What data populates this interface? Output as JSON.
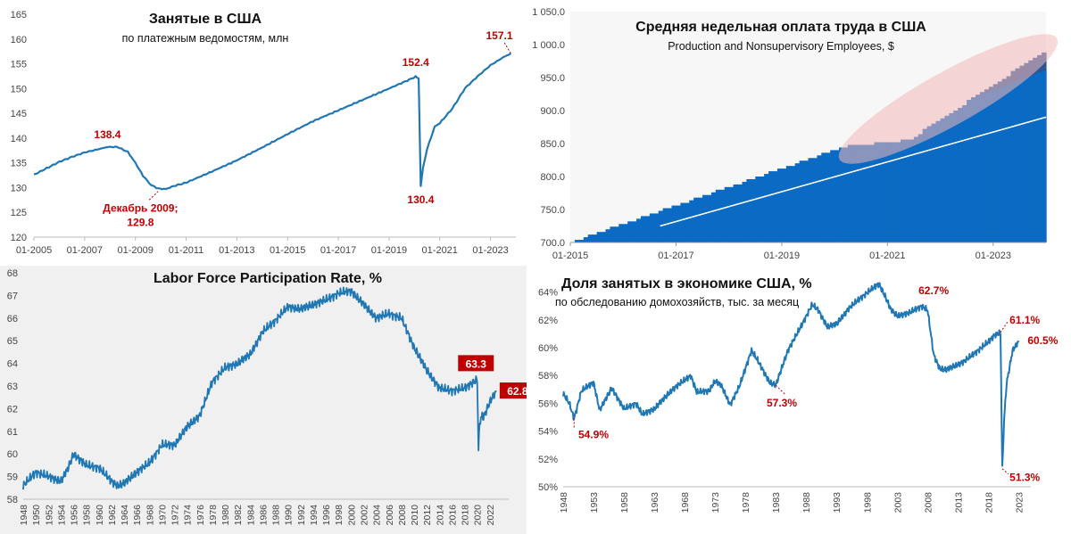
{
  "chart_data": [
    {
      "type": "line",
      "title": "Занятые в США",
      "subtitle": "по платежным ведомостям, млн",
      "x_ticks": [
        "01-2005",
        "01-2007",
        "01-2009",
        "01-2011",
        "01-2013",
        "01-2015",
        "01-2017",
        "01-2019",
        "01-2021",
        "01-2023"
      ],
      "y_ticks": [
        "120",
        "125",
        "130",
        "135",
        "140",
        "145",
        "150",
        "155",
        "160",
        "165"
      ],
      "ylim": [
        120,
        165
      ],
      "xlim": [
        2005.0,
        2024.0
      ],
      "color": "#1f77b4",
      "series": [
        {
          "x": [
            2005.0,
            2005.5,
            2006.0,
            2006.5,
            2007.0,
            2007.5,
            2007.9,
            2008.3,
            2008.7,
            2009.0,
            2009.3,
            2009.6,
            2009.9,
            2010.2,
            2010.5,
            2011.0,
            2012.0,
            2013.0,
            2014.0,
            2015.0,
            2016.0,
            2017.0,
            2018.0,
            2019.0,
            2019.8,
            2020.05,
            2020.17,
            2020.25,
            2020.34,
            2020.5,
            2020.8,
            2021.0,
            2021.5,
            2022.0,
            2022.5,
            2023.0,
            2023.5,
            2023.8
          ],
          "values": [
            132.6,
            133.9,
            135.2,
            136.2,
            137.1,
            137.7,
            138.2,
            138.2,
            137.2,
            135.0,
            132.4,
            130.6,
            129.8,
            129.7,
            130.3,
            131.0,
            133.2,
            135.5,
            138.1,
            140.8,
            143.4,
            145.6,
            147.8,
            150.0,
            151.8,
            152.4,
            152.0,
            130.4,
            134.0,
            137.8,
            142.3,
            143.0,
            146.0,
            150.1,
            152.5,
            154.7,
            156.3,
            157.1
          ]
        }
      ],
      "annotations": [
        "138.4",
        "Декабрь 2009;",
        "129.8",
        "152.4",
        "130.4",
        "157.1"
      ]
    },
    {
      "type": "bar",
      "title": "Средняя недельная оплата труда в США",
      "subtitle": "Production and Nonsupervisory Employees, $",
      "x_ticks": [
        "01-2015",
        "01-2017",
        "01-2019",
        "01-2021",
        "01-2023"
      ],
      "y_ticks": [
        "700.0",
        "750.0",
        "800.0",
        "850.0",
        "900.0",
        "950.0",
        "1 000.0",
        "1 050.0"
      ],
      "ylim": [
        700,
        1050
      ],
      "xlim": [
        2015.0,
        2024.0
      ],
      "colors": {
        "bar": "#0a6ac4",
        "highlight": "#2b5797",
        "ellipse": "#f2b8b8",
        "trendline": "#ffffff"
      },
      "bars_x": [
        2015.0,
        2023.9
      ],
      "bars_values": [
        703,
        990
      ],
      "trend_line": {
        "x": [
          2016.7,
          2024.0
        ],
        "values": [
          725,
          890
        ]
      }
    },
    {
      "type": "line",
      "title": "Labor Force Participation Rate, %",
      "x_ticks": [
        "1948",
        "1950",
        "1952",
        "1954",
        "1956",
        "1958",
        "1960",
        "1962",
        "1964",
        "1966",
        "1968",
        "1970",
        "1972",
        "1974",
        "1976",
        "1978",
        "1980",
        "1982",
        "1984",
        "1986",
        "1988",
        "1990",
        "1992",
        "1994",
        "1996",
        "1998",
        "2000",
        "2002",
        "2004",
        "2006",
        "2008",
        "2010",
        "2012",
        "2014",
        "2016",
        "2018",
        "2020",
        "2022"
      ],
      "y_ticks": [
        "58",
        "59",
        "60",
        "61",
        "62",
        "63",
        "64",
        "65",
        "66",
        "67",
        "68"
      ],
      "ylim": [
        58,
        68
      ],
      "xlim": [
        1948,
        2025
      ],
      "color": "#1f77b4",
      "series": [
        {
          "x": [
            1948,
            1950,
            1952,
            1954,
            1955,
            1956,
            1958,
            1960,
            1962,
            1963,
            1964,
            1966,
            1968,
            1970,
            1972,
            1974,
            1976,
            1978,
            1980,
            1982,
            1984,
            1986,
            1988,
            1990,
            1992,
            1994,
            1996,
            1998,
            2000,
            2002,
            2004,
            2006,
            2008,
            2010,
            2012,
            2014,
            2016,
            2018,
            2019,
            2020.0,
            2020.2,
            2020.4,
            2020.8,
            2021,
            2022,
            2023
          ],
          "values": [
            58.6,
            59.2,
            59.0,
            58.8,
            59.3,
            60.0,
            59.5,
            59.4,
            58.8,
            58.6,
            58.7,
            59.2,
            59.6,
            60.4,
            60.4,
            61.2,
            61.7,
            63.2,
            63.8,
            64.0,
            64.4,
            65.4,
            65.9,
            66.5,
            66.4,
            66.6,
            66.8,
            67.1,
            67.2,
            66.6,
            66.0,
            66.2,
            66.0,
            64.7,
            63.7,
            62.9,
            62.8,
            62.9,
            63.1,
            63.3,
            60.2,
            61.4,
            61.7,
            61.6,
            62.3,
            62.8
          ]
        }
      ],
      "annotations": [
        "63.3",
        "62.8"
      ]
    },
    {
      "type": "line",
      "title": "Доля занятых в экономике США, %",
      "subtitle": "по обследованию домохозяйств, тыс. за месяц",
      "x_ticks": [
        "1948",
        "1953",
        "1958",
        "1963",
        "1968",
        "1973",
        "1978",
        "1983",
        "1988",
        "1993",
        "1998",
        "2003",
        "2008",
        "2013",
        "2018",
        "2023"
      ],
      "y_ticks": [
        "50%",
        "52%",
        "54%",
        "56%",
        "58%",
        "60%",
        "62%",
        "64%"
      ],
      "ylim": [
        50,
        65
      ],
      "xlim": [
        1948,
        2025
      ],
      "color": "#1f77b4",
      "series": [
        {
          "x": [
            1948,
            1949,
            1949.8,
            1951,
            1953,
            1954,
            1956,
            1958,
            1960,
            1961,
            1963,
            1966,
            1969,
            1970,
            1972,
            1973,
            1974,
            1975.5,
            1977,
            1979,
            1980,
            1982,
            1983,
            1985,
            1987,
            1989,
            1990,
            1991.5,
            1993,
            1995,
            1997,
            2000,
            2001,
            2002,
            2003,
            2005,
            2007,
            2008,
            2009,
            2010,
            2011,
            2014,
            2016,
            2018,
            2019,
            2020.0,
            2020.3,
            2020.6,
            2021,
            2022,
            2023
          ],
          "values": [
            56.7,
            56.0,
            54.9,
            56.9,
            57.5,
            55.5,
            57.1,
            55.6,
            56.0,
            55.2,
            55.6,
            57.0,
            58.0,
            56.8,
            56.9,
            57.6,
            57.3,
            55.9,
            57.2,
            59.8,
            59.1,
            57.5,
            57.3,
            59.8,
            61.4,
            63.1,
            62.7,
            61.5,
            61.7,
            62.8,
            63.6,
            64.6,
            63.7,
            62.7,
            62.3,
            62.5,
            63.0,
            62.7,
            59.5,
            58.5,
            58.4,
            59.0,
            59.7,
            60.4,
            60.9,
            61.1,
            51.3,
            54.8,
            57.4,
            59.8,
            60.5
          ]
        }
      ],
      "annotations": [
        "54.9%",
        "57.3%",
        "62.7%",
        "61.1%",
        "60.5%",
        "51.3%"
      ]
    }
  ]
}
